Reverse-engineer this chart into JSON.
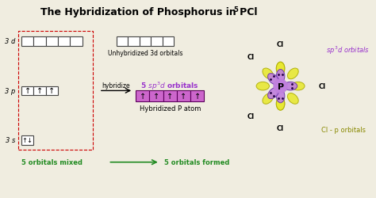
{
  "title": "The Hybridization of Phosphorus in PCl",
  "title_sub": "5",
  "bg_color": "#f0ede0",
  "label_3d": "3 d",
  "label_3p": "3 p",
  "label_3s": "3 s",
  "label_unhybridized": "Unhybridized 3d orbitals",
  "label_5sp3d": "5 sp³d orbitals",
  "label_hybridize": "hybridize",
  "label_hybridized": "Hybridized P atom",
  "label_sp3d_orbitals": "sp³d orbitals",
  "label_cl_p": "Cl - p orbitals",
  "label_5orb_mixed": "5 orbitals mixed",
  "label_5orb_formed": "5 orbitals formed",
  "green_color": "#228B22",
  "dashed_box_color": "#cc0000",
  "orbital_empty_color": "#ffffff",
  "orbital_filled_color": "#cc66cc",
  "orbital_box_edge": "#444444",
  "p_orbital_color": "#c080dd",
  "cl_orbital_color": "#e8e830",
  "sp3d_text_color": "#9933cc",
  "cl_label_color": "#000000",
  "yellow_label_color": "#888800"
}
